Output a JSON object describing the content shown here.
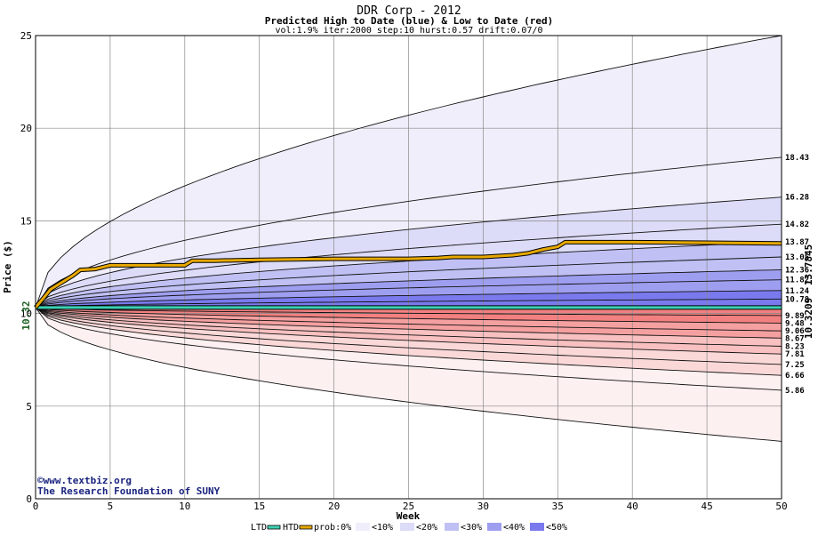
{
  "chart_data": {
    "type": "area",
    "title": "DDR Corp - 2012",
    "subtitle": "Predicted High to Date (blue) &  Low to Date (red)",
    "params": "vol:1.9% iter:2000 step:10 hurst:0.57 drift:0.07/0",
    "xlabel": "Week",
    "ylabel": "Price ($)",
    "xlim": [
      0,
      50
    ],
    "ylim": [
      0,
      25
    ],
    "x_ticks": [
      "0",
      "5",
      "10",
      "15",
      "20",
      "25",
      "30",
      "35",
      "40",
      "45",
      "50"
    ],
    "y_ticks": [
      "0",
      "5",
      "10",
      "15",
      "20",
      "25"
    ],
    "grid": true,
    "start_value": 10.32,
    "start_label": "10.32",
    "ltd_value": 10.3209,
    "ltd_label": "10.3209",
    "htd_value": 13.7845,
    "htd_label": "13.7845",
    "upper_band_endpoints": [
      18.43,
      16.28,
      14.82,
      13.87,
      13.05,
      12.36,
      11.82,
      11.24,
      10.78
    ],
    "upper_band_labels": [
      "18.43",
      "16.28",
      "14.82",
      "13.87",
      "13.05",
      "12.36",
      "11.82",
      "11.24",
      "10.78"
    ],
    "lower_band_endpoints": [
      9.89,
      9.48,
      9.06,
      8.67,
      8.23,
      7.81,
      7.25,
      6.66,
      5.86
    ],
    "lower_band_labels": [
      "9.89",
      "9.48",
      "9.06",
      "8.67",
      "8.23",
      "7.81",
      "7.25",
      "6.66",
      "5.86"
    ],
    "upper_envelope_end": 25,
    "lower_envelope_end": 3.1,
    "htd_path": {
      "x": [
        0,
        0.5,
        1,
        1.5,
        2,
        2.5,
        3,
        4,
        5,
        6,
        7,
        8,
        9,
        10,
        10.5,
        12,
        15,
        20,
        25,
        27,
        28,
        30,
        31,
        32,
        33,
        34,
        35,
        35.5,
        40,
        45,
        50
      ],
      "y": [
        10.32,
        10.8,
        11.3,
        11.55,
        11.8,
        12.05,
        12.35,
        12.4,
        12.6,
        12.6,
        12.6,
        12.6,
        12.6,
        12.6,
        12.85,
        12.85,
        12.9,
        12.95,
        12.95,
        13.0,
        13.05,
        13.05,
        13.1,
        13.15,
        13.25,
        13.45,
        13.6,
        13.85,
        13.85,
        13.82,
        13.78
      ]
    },
    "ltd_path": {
      "x": [
        0,
        50
      ],
      "y": [
        10.3209,
        10.3209
      ]
    }
  },
  "colors": {
    "ltd": "#3cd2b4",
    "htd": "#e6a800",
    "prob_0": "#ffffff",
    "prob_10": "#f0eefa",
    "prob_20": "#dcdcf8",
    "prob_30": "#c0c0f4",
    "prob_40": "#9e9ef0",
    "prob_50": "#7a7aee",
    "red_10": "#fdf0f0",
    "red_20": "#fbd8d8",
    "red_30": "#f8c0c0",
    "red_40": "#f5a0a0",
    "red_50": "#f28080",
    "left_value": "#1b5e20",
    "right_ltd": "#1b8a5a",
    "right_htd": "#a0781a"
  },
  "legend": {
    "ltd": "LTD",
    "htd": "HTD",
    "prob": "prob:0%",
    "p10": "<10%",
    "p20": "<20%",
    "p30": "<30%",
    "p40": "<40%",
    "p50": "<50%"
  },
  "credits": {
    "line1": "©www.textbiz.org",
    "line2": "The Research Foundation of SUNY"
  }
}
